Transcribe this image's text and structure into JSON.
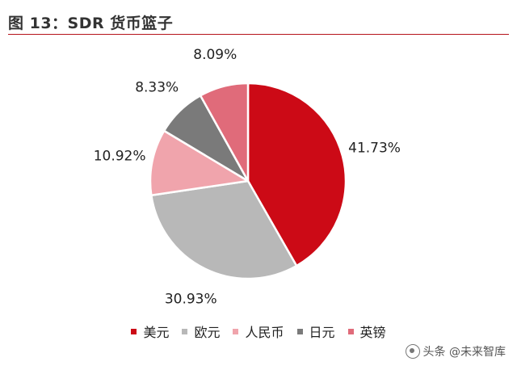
{
  "header": {
    "title": "图 13：SDR 货币篮子"
  },
  "chart_data": {
    "type": "pie",
    "title": "",
    "slices": [
      {
        "name": "美元",
        "value": 41.73,
        "label": "41.73%",
        "color": "#cc0a16"
      },
      {
        "name": "欧元",
        "value": 30.93,
        "label": "30.93%",
        "color": "#b8b8b8"
      },
      {
        "name": "人民币",
        "value": 10.92,
        "label": "10.92%",
        "color": "#f0a4ac"
      },
      {
        "name": "日元",
        "value": 8.33,
        "label": "8.33%",
        "color": "#7a7a7a"
      },
      {
        "name": "英镑",
        "value": 8.09,
        "label": "8.09%",
        "color": "#e06b7a"
      }
    ],
    "start_angle_deg": 0,
    "direction": "clockwise",
    "legend_position": "bottom"
  },
  "watermark": {
    "text": "头条 @未来智库"
  }
}
